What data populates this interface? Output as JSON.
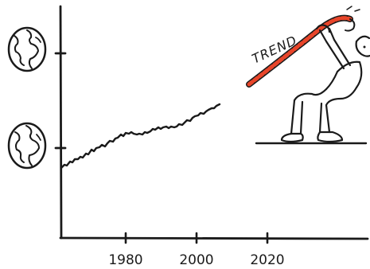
{
  "figure": {
    "x_ticks": [
      "1980",
      "2000",
      "2020"
    ],
    "trend_label": "TREND",
    "colors": {
      "ink": "#1a1a1a",
      "trend_stroke": "#e8452a",
      "background": "#ffffff"
    },
    "icons": [
      "globe-icon",
      "globe-icon",
      "cartoon-person-icon"
    ]
  }
}
